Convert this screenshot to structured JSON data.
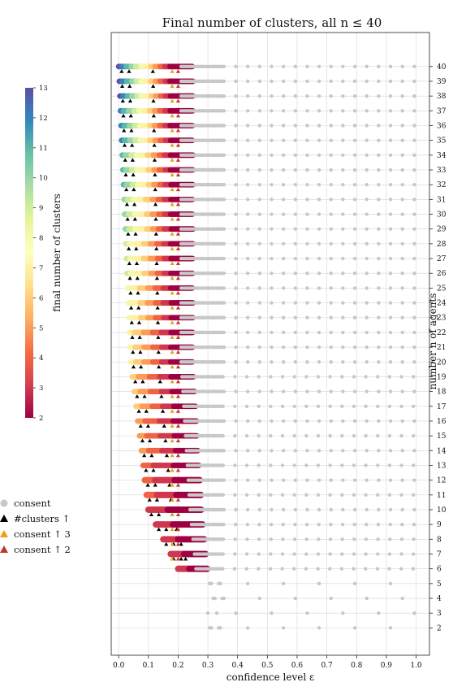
{
  "chart_data": {
    "type": "scatter",
    "title": "Final number of clusters, all n ≤ 40",
    "xlabel": "confidence level ε",
    "ylabel": "number n of agents",
    "xlim": [
      -0.025,
      1.045
    ],
    "ylim": [
      0.15,
      42.3
    ],
    "x_ticks": [
      "0.0",
      "0.1",
      "0.2",
      "0.3",
      "0.4",
      "0.5",
      "0.6",
      "0.7",
      "0.8",
      "0.9",
      "1.0"
    ],
    "y_ticks": [
      "2",
      "3",
      "4",
      "5",
      "6",
      "7",
      "8",
      "9",
      "10",
      "11",
      "12",
      "13",
      "14",
      "15",
      "16",
      "17",
      "18",
      "19",
      "20",
      "21",
      "22",
      "23",
      "24",
      "25",
      "26",
      "27",
      "28",
      "29",
      "30",
      "31",
      "32",
      "33",
      "34",
      "35",
      "36",
      "37",
      "38",
      "39",
      "40"
    ],
    "y_axis_side": "right",
    "grid": true,
    "colorbar": {
      "label": "final number of clusters",
      "ticks": [
        "2",
        "3",
        "4",
        "5",
        "6",
        "7",
        "8",
        "9",
        "10",
        "11",
        "12",
        "13"
      ],
      "range": [
        2,
        13
      ],
      "colormap": [
        "#9e0142",
        "#d53e4f",
        "#f46d43",
        "#fdae61",
        "#fee08b",
        "#ffffbf",
        "#e6f598",
        "#abdda4",
        "#66c2a5",
        "#3288bd",
        "#5e4fa2"
      ],
      "placement": "left"
    },
    "legend": {
      "placement": "bottom-left",
      "entries": [
        {
          "label": "consent",
          "marker": "circle",
          "color": "#c8c8c8"
        },
        {
          "label": "#clusters ↑",
          "marker": "triangle",
          "color": "#000000"
        },
        {
          "label": "consent ↑ 3",
          "marker": "triangle",
          "color": "#f39c12"
        },
        {
          "label": "consent ↑ 2",
          "marker": "triangle",
          "color": "#c0392b"
        }
      ]
    },
    "series_note_values": {
      "cluster_start_eps_by_n": {
        "40": 0.0,
        "20": 0.04,
        "10": 0.1,
        "6": 0.2
      },
      "consent_end_eps_by_n": {
        "40": 0.25,
        "20": 0.25,
        "10": 0.28,
        "6": 0.3
      }
    }
  }
}
